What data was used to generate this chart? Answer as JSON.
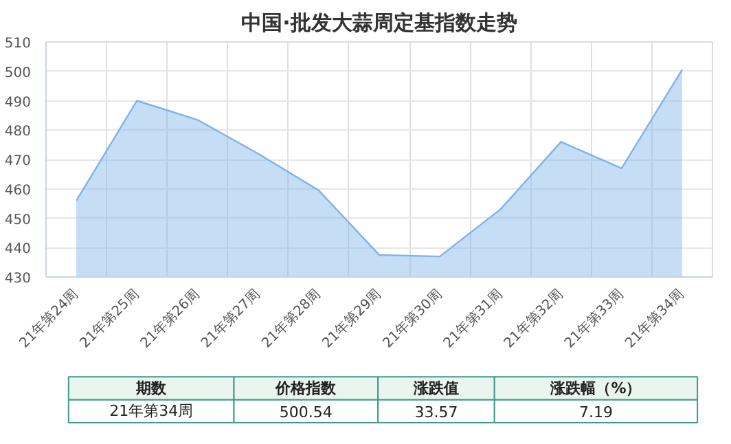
{
  "chart_data": {
    "type": "area",
    "title": "中国·批发大蒜周定基指数走势",
    "categories": [
      "21年第24周",
      "21年第25周",
      "21年第26周",
      "21年第27周",
      "21年第28周",
      "21年第29周",
      "21年第30周",
      "21年第31周",
      "21年第32周",
      "21年第33周",
      "21年第34周"
    ],
    "values": [
      456,
      490,
      483.5,
      472,
      459.5,
      437.5,
      437,
      453,
      476,
      467,
      500.54
    ],
    "color": "#7fb3e8",
    "ylim": [
      430,
      510
    ],
    "yticks": [
      430,
      440,
      450,
      460,
      470,
      480,
      490,
      500,
      510
    ],
    "grid": true,
    "annotations": [
      "期数",
      "价格指数",
      "涨跌值",
      "涨跌幅（%）",
      "21年第34周",
      "500.54",
      "33.57",
      "7.19"
    ]
  }
}
